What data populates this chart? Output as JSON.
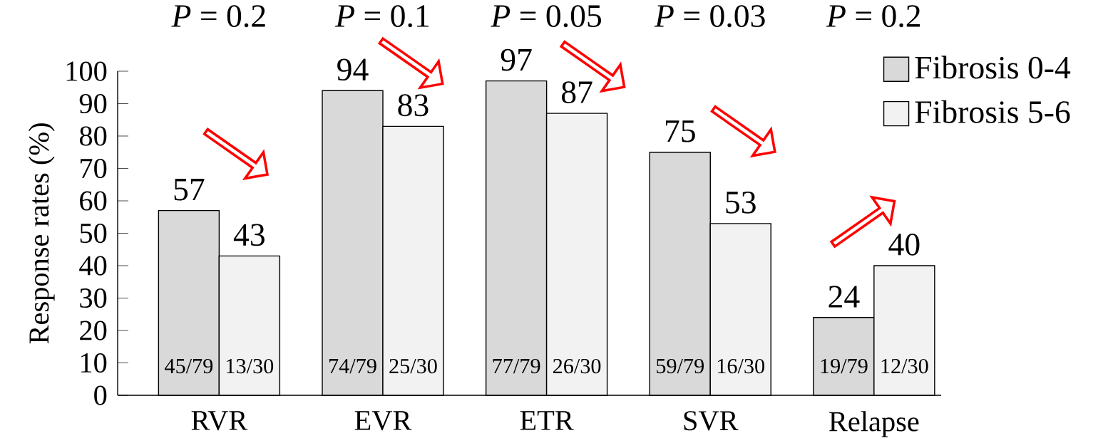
{
  "chart_data": {
    "type": "bar",
    "ylabel": "Response rates (%)",
    "categories": [
      "RVR",
      "EVR",
      "ETR",
      "SVR",
      "Relapse"
    ],
    "series": [
      {
        "name": "Fibrosis 0-4",
        "color": "#d9d9d9",
        "values": [
          57,
          94,
          97,
          75,
          24
        ]
      },
      {
        "name": "Fibrosis 5-6",
        "color": "#f2f2f2",
        "values": [
          43,
          83,
          87,
          53,
          40
        ]
      }
    ],
    "ylim": [
      0,
      100
    ],
    "yticks": [
      0,
      10,
      20,
      30,
      40,
      50,
      60,
      70,
      80,
      90,
      100
    ],
    "data_labels": true,
    "legend": "top right",
    "grid": false,
    "annotations": [
      "*P* = 0.2",
      "*P* = 0.1",
      "*P* = 0.05",
      "*P* = 0.03",
      "*P* = 0.2",
      "45/79",
      "13/30",
      "74/79",
      "25/30",
      "77/79",
      "26/30",
      "59/79",
      "16/30",
      "19/79",
      "12/30"
    ]
  }
}
